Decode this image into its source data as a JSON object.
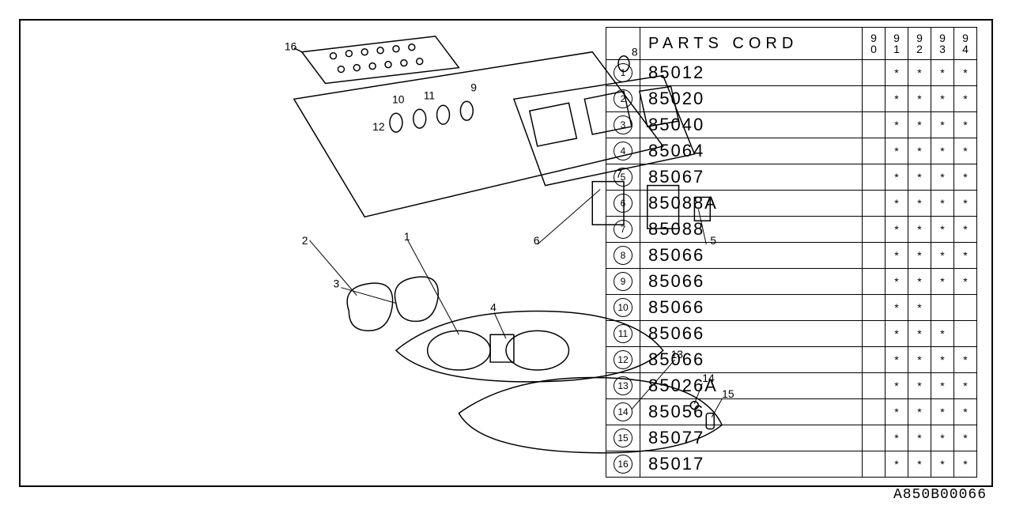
{
  "drawing_number": "A850B00066",
  "table": {
    "header_label": "PARTS CORD",
    "year_columns": [
      "90",
      "91",
      "92",
      "93",
      "94"
    ],
    "rows": [
      {
        "idx": "1",
        "code": "85012",
        "marks": [
          "",
          "*",
          "*",
          "*",
          "*"
        ]
      },
      {
        "idx": "2",
        "code": "85020",
        "marks": [
          "",
          "*",
          "*",
          "*",
          "*"
        ]
      },
      {
        "idx": "3",
        "code": "85040",
        "marks": [
          "",
          "*",
          "*",
          "*",
          "*"
        ]
      },
      {
        "idx": "4",
        "code": "85064",
        "marks": [
          "",
          "*",
          "*",
          "*",
          "*"
        ]
      },
      {
        "idx": "5",
        "code": "85067",
        "marks": [
          "",
          "*",
          "*",
          "*",
          "*"
        ]
      },
      {
        "idx": "6",
        "code": "85088A",
        "marks": [
          "",
          "*",
          "*",
          "*",
          "*"
        ]
      },
      {
        "idx": "7",
        "code": "85088",
        "marks": [
          "",
          "*",
          "*",
          "*",
          "*"
        ]
      },
      {
        "idx": "8",
        "code": "85066",
        "marks": [
          "",
          "*",
          "*",
          "*",
          "*"
        ]
      },
      {
        "idx": "9",
        "code": "85066",
        "marks": [
          "",
          "*",
          "*",
          "*",
          "*"
        ]
      },
      {
        "idx": "10",
        "code": "85066",
        "marks": [
          "",
          "*",
          "*",
          "",
          ""
        ]
      },
      {
        "idx": "11",
        "code": "85066",
        "marks": [
          "",
          "*",
          "*",
          "*",
          ""
        ]
      },
      {
        "idx": "12",
        "code": "85066",
        "marks": [
          "",
          "*",
          "*",
          "*",
          "*"
        ]
      },
      {
        "idx": "13",
        "code": "85026A",
        "marks": [
          "",
          "*",
          "*",
          "*",
          "*"
        ]
      },
      {
        "idx": "14",
        "code": "85056",
        "marks": [
          "",
          "*",
          "*",
          "*",
          "*"
        ]
      },
      {
        "idx": "15",
        "code": "85077",
        "marks": [
          "",
          "*",
          "*",
          "*",
          "*"
        ]
      },
      {
        "idx": "16",
        "code": "85017",
        "marks": [
          "",
          "*",
          "*",
          "*",
          "*"
        ]
      }
    ]
  },
  "diagram": {
    "callouts": [
      "1",
      "2",
      "3",
      "4",
      "5",
      "6",
      "7",
      "8",
      "9",
      "10",
      "11",
      "12",
      "13",
      "14",
      "15",
      "16"
    ],
    "stroke_color": "#000000",
    "background_color": "#ffffff",
    "callout_fontsize": 14
  }
}
